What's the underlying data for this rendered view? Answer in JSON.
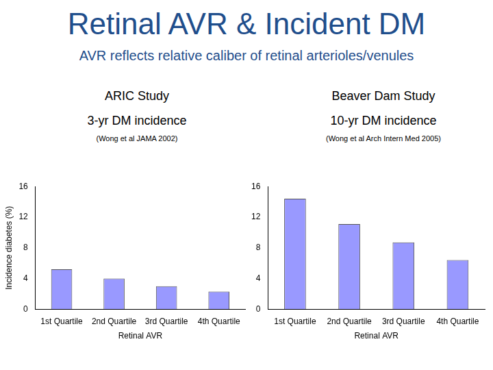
{
  "title": "Retinal AVR & Incident DM",
  "subtitle": "AVR reflects relative caliber of retinal arterioles/venules",
  "chart_data": [
    {
      "type": "bar",
      "title": "ARIC Study",
      "subtitle": "3-yr DM incidence",
      "annotation": "(Wong et al JAMA 2002)",
      "categories": [
        "1st Quartile",
        "2nd Quartile",
        "3rd Quartile",
        "4th Quartile"
      ],
      "values": [
        5.2,
        4.0,
        3.0,
        2.3
      ],
      "color": "#9999ff",
      "ylim": [
        0,
        16
      ],
      "yticks": [
        0,
        4,
        8,
        12,
        16
      ],
      "grid": false,
      "x_label": "Retinal AVR",
      "y_label": "Incidence diabetes (%)"
    },
    {
      "type": "bar",
      "title": "Beaver Dam Study",
      "subtitle": "10-yr DM incidence",
      "annotation": "(Wong et al Arch Intern Med 2005)",
      "categories": [
        "1st Quartile",
        "2nd Quartile",
        "3rd Quartile",
        "4th Quartile"
      ],
      "values": [
        14.4,
        11.1,
        8.7,
        6.4
      ],
      "color": "#9999ff",
      "ylim": [
        0,
        16
      ],
      "yticks": [
        0,
        4,
        8,
        12,
        16
      ],
      "grid": false,
      "x_label": "Retinal AVR"
    }
  ]
}
